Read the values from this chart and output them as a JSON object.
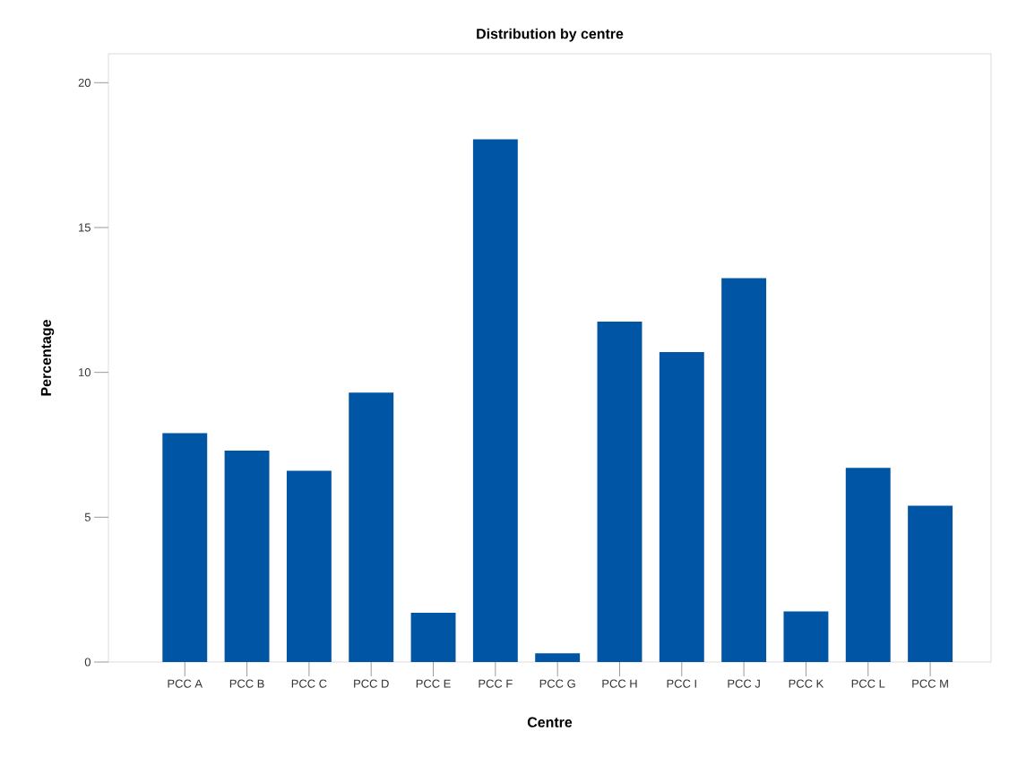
{
  "chart_data": {
    "type": "bar",
    "title": "Distribution by centre",
    "xlabel": "Centre",
    "ylabel": "Percentage",
    "categories": [
      "PCC A",
      "PCC B",
      "PCC C",
      "PCC D",
      "PCC E",
      "PCC F",
      "PCC G",
      "PCC H",
      "PCC I",
      "PCC J",
      "PCC K",
      "PCC L",
      "PCC M"
    ],
    "values": [
      7.9,
      7.3,
      6.6,
      9.3,
      1.7,
      18.05,
      0.3,
      11.75,
      10.7,
      13.25,
      1.75,
      6.7,
      5.4
    ],
    "color": "#0055a5",
    "ylim": [
      0,
      21
    ],
    "yticks": [
      0,
      5,
      10,
      15,
      20
    ]
  }
}
